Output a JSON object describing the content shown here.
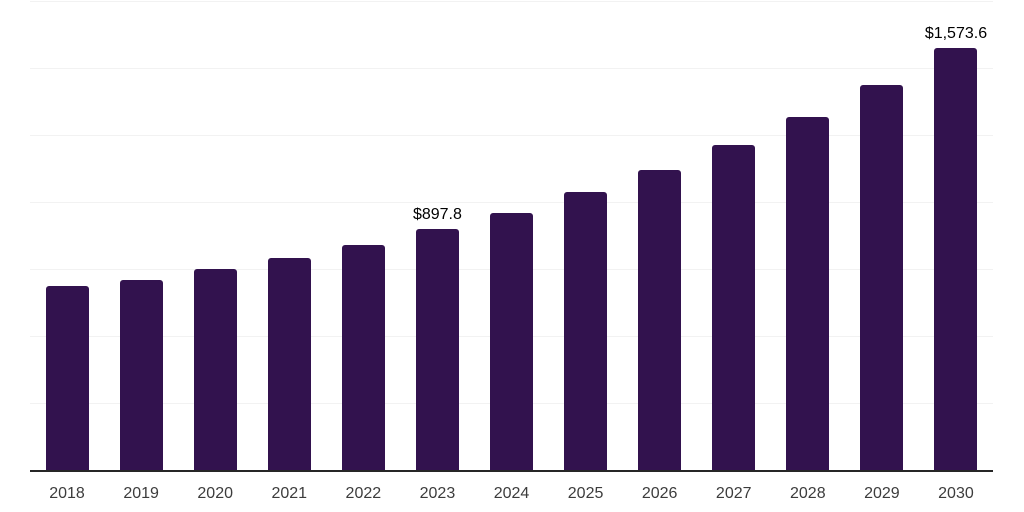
{
  "chart_data": {
    "type": "bar",
    "title": "",
    "xlabel": "",
    "ylabel": "",
    "categories": [
      "2018",
      "2019",
      "2020",
      "2021",
      "2022",
      "2023",
      "2024",
      "2025",
      "2026",
      "2027",
      "2028",
      "2029",
      "2030"
    ],
    "values": [
      687,
      709,
      749,
      790,
      839,
      897.8,
      960,
      1036,
      1119,
      1211,
      1316,
      1436,
      1573.6
    ],
    "data_labels": [
      "",
      "",
      "",
      "",
      "",
      "$897.8",
      "",
      "",
      "",
      "",
      "",
      "",
      "$1,573.6"
    ],
    "ylim": [
      0,
      1750
    ],
    "grid_step": 250,
    "grid": "horizontal",
    "legend": "none",
    "colors": {
      "bar": "#32124E",
      "axis": "#262626",
      "gridline": "#F2F2F2",
      "data_label": "#000000",
      "tick_label": "#3C3C3C",
      "background": "#FFFFFF"
    }
  }
}
